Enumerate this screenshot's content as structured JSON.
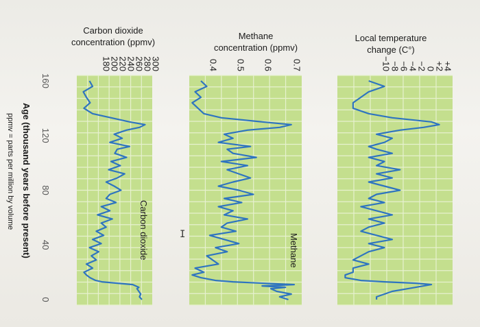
{
  "headers": {
    "temp": [
      "Local temperature",
      "change (C°)"
    ],
    "methane": [
      "Methane",
      "concentration (ppmv)"
    ],
    "co2": [
      "Carbon dioxide",
      "concentration (ppmv)"
    ]
  },
  "axis_title": "Age (thousand years before present)",
  "footnote": "ppmv = parts per million by volume",
  "colors": {
    "band": "#c4df8e",
    "grid": "#e7f1cf",
    "line": "#2e74c0",
    "text": "#1a1a1a"
  },
  "cursor_glyph": "I",
  "chart_data": [
    {
      "type": "line",
      "ylabel": "Local temperature change (C°)",
      "yticks": [
        "+4",
        "+2",
        "0",
        "−2",
        "−4",
        "−6",
        "−8",
        "−10"
      ],
      "ylim": [
        -10,
        4
      ],
      "xlim": [
        160,
        0
      ],
      "x": [
        160,
        156,
        152,
        148,
        144,
        140,
        136,
        133,
        130,
        128,
        126,
        124,
        121,
        118,
        115,
        112,
        110,
        107,
        104,
        101,
        98,
        95,
        92,
        89,
        86,
        83,
        80,
        77,
        74,
        71,
        68,
        65,
        62,
        59,
        56,
        53,
        50,
        47,
        44,
        41,
        38,
        35,
        32,
        29,
        26,
        23,
        20,
        18,
        16,
        14,
        13,
        12,
        11,
        10,
        9,
        8,
        6,
        4,
        2,
        0
      ],
      "values": [
        -6,
        -4,
        -6,
        -7,
        -8,
        -8,
        -6,
        -3,
        2,
        3,
        1,
        -2,
        -5,
        -3,
        -4,
        -6,
        -5,
        -3,
        -6,
        -4,
        -5,
        -2,
        -5,
        -3,
        -6,
        -4,
        -2,
        -5,
        -6,
        -4,
        -7,
        -5,
        -3,
        -6,
        -4,
        -6,
        -7,
        -5,
        -3,
        -6,
        -4,
        -6,
        -7,
        -8,
        -6,
        -8,
        -8,
        -9,
        -9,
        -7,
        -4,
        0,
        2,
        1,
        0,
        -1,
        -3,
        -4,
        -5,
        -5
      ]
    },
    {
      "type": "line",
      "ylabel": "Methane concentration (ppmv)",
      "yticks": [
        "0.7",
        "0.6",
        "0.5",
        "0.4"
      ],
      "ylim": [
        0.35,
        0.75
      ],
      "xlim": [
        160,
        0
      ],
      "series": [
        {
          "name": "Methane",
          "values": [
            0.39,
            0.41,
            0.37,
            0.39,
            0.36,
            0.38,
            0.4,
            0.46,
            0.6,
            0.7,
            0.66,
            0.55,
            0.47,
            0.5,
            0.45,
            0.56,
            0.48,
            0.5,
            0.58,
            0.46,
            0.55,
            0.48,
            0.52,
            0.56,
            0.5,
            0.45,
            0.52,
            0.57,
            0.47,
            0.53,
            0.45,
            0.5,
            0.47,
            0.55,
            0.48,
            0.46,
            0.51,
            0.42,
            0.47,
            0.52,
            0.44,
            0.48,
            0.41,
            0.43,
            0.45,
            0.37,
            0.4,
            0.36,
            0.39,
            0.44,
            0.5,
            0.6,
            0.71,
            0.6,
            0.68,
            0.63,
            0.65,
            0.7,
            0.66,
            0.69
          ]
        }
      ],
      "x": [
        160,
        156,
        152,
        148,
        144,
        140,
        136,
        133,
        130,
        128,
        126,
        124,
        121,
        118,
        115,
        112,
        110,
        107,
        104,
        101,
        98,
        95,
        92,
        89,
        86,
        83,
        80,
        77,
        74,
        71,
        68,
        65,
        62,
        59,
        56,
        53,
        50,
        47,
        44,
        41,
        38,
        35,
        32,
        29,
        26,
        23,
        20,
        18,
        16,
        14,
        13,
        12,
        11,
        10,
        9,
        8,
        6,
        4,
        2,
        0
      ]
    },
    {
      "type": "line",
      "ylabel": "Carbon dioxide concentration (ppmv)",
      "yticks": [
        "300",
        "280",
        "260",
        "240",
        "220",
        "200",
        "180"
      ],
      "ylim": [
        170,
        310
      ],
      "xlim": [
        160,
        0
      ],
      "xticks": [
        "160",
        "120",
        "80",
        "40",
        "0"
      ],
      "xtick_values": [
        160,
        120,
        80,
        40,
        0
      ],
      "xlabel": "Age (thousand years before present)",
      "series": [
        {
          "name": "Carbon dioxide",
          "values": [
            195,
            200,
            185,
            190,
            196,
            186,
            200,
            230,
            260,
            285,
            276,
            255,
            235,
            248,
            228,
            260,
            240,
            236,
            255,
            230,
            245,
            226,
            252,
            240,
            222,
            235,
            246,
            228,
            222,
            238,
            214,
            228,
            208,
            232,
            214,
            222,
            206,
            218,
            200,
            214,
            195,
            210,
            198,
            206,
            190,
            200,
            186,
            190,
            196,
            205,
            215,
            240,
            265,
            270,
            275,
            272,
            275,
            278,
            276,
            280
          ]
        }
      ],
      "x": [
        160,
        156,
        152,
        148,
        144,
        140,
        136,
        133,
        130,
        128,
        126,
        124,
        121,
        118,
        115,
        112,
        110,
        107,
        104,
        101,
        98,
        95,
        92,
        89,
        86,
        83,
        80,
        77,
        74,
        71,
        68,
        65,
        62,
        59,
        56,
        53,
        50,
        47,
        44,
        41,
        38,
        35,
        32,
        29,
        26,
        23,
        20,
        18,
        16,
        14,
        13,
        12,
        11,
        10,
        9,
        8,
        6,
        4,
        2,
        0
      ]
    }
  ]
}
